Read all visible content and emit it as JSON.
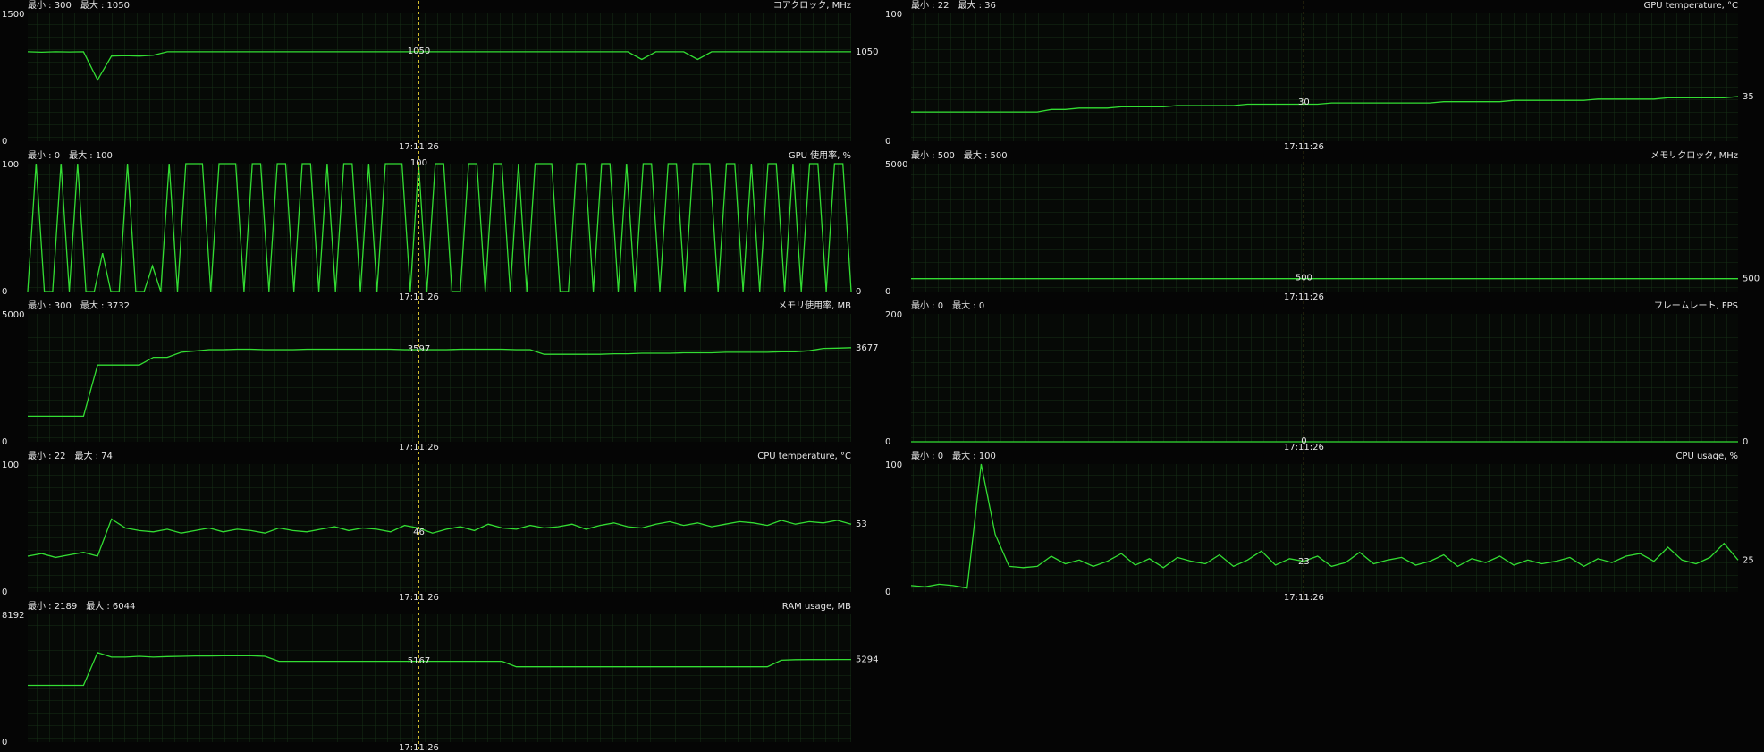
{
  "chart_data": [
    {
      "type": "line",
      "title": "コアクロック, MHz",
      "min_label": "最小 : 300",
      "max_label": "最大 : 1050",
      "ylim": [
        0,
        1500
      ],
      "yticks": [
        0,
        1500
      ],
      "color": "#33dd33",
      "current_value": 1050,
      "cursor_value": 1050,
      "cursor_time": "17:11:26",
      "values": [
        1050,
        1045,
        1050,
        1048,
        1050,
        720,
        1000,
        1005,
        1000,
        1010,
        1050,
        1050,
        1050,
        1050,
        1050,
        1050,
        1050,
        1050,
        1050,
        1050,
        1050,
        1050,
        1050,
        1050,
        1050,
        1050,
        1050,
        1050,
        1050,
        1050,
        1050,
        1050,
        1050,
        1050,
        1050,
        1050,
        1050,
        1050,
        1050,
        1050,
        1050,
        1050,
        1050,
        1050,
        960,
        1050,
        1050,
        1050,
        960,
        1050,
        1050,
        1050,
        1050,
        1050,
        1050,
        1050,
        1050,
        1050,
        1050,
        1050
      ]
    },
    {
      "type": "line",
      "title": "GPU 使用率, %",
      "min_label": "最小 : 0",
      "max_label": "最大 : 100",
      "ylim": [
        0,
        100
      ],
      "yticks": [
        0,
        100
      ],
      "color": "#33dd33",
      "current_value": 0,
      "cursor_value": 100,
      "cursor_time": "17:11:26",
      "values": [
        0,
        100,
        0,
        0,
        100,
        0,
        100,
        0,
        0,
        30,
        0,
        0,
        100,
        0,
        0,
        20,
        0,
        100,
        0,
        100,
        100,
        100,
        0,
        100,
        100,
        100,
        0,
        100,
        100,
        0,
        100,
        100,
        0,
        100,
        100,
        0,
        100,
        0,
        100,
        100,
        0,
        100,
        0,
        100,
        100,
        100,
        0,
        100,
        0,
        100,
        100,
        0,
        0,
        100,
        100,
        0,
        100,
        100,
        0,
        100,
        0,
        100,
        100,
        100,
        0,
        0,
        100,
        100,
        0,
        100,
        100,
        0,
        100,
        0,
        100,
        100,
        0,
        100,
        100,
        0,
        100,
        100,
        100,
        0,
        100,
        100,
        0,
        100,
        0,
        100,
        100,
        0,
        100,
        0,
        100,
        100,
        0,
        100,
        100,
        0
      ]
    },
    {
      "type": "line",
      "title": "メモリ使用率, MB",
      "min_label": "最小 : 300",
      "max_label": "最大 : 3732",
      "ylim": [
        0,
        5000
      ],
      "yticks": [
        0,
        5000
      ],
      "color": "#33dd33",
      "current_value": 3677,
      "cursor_value": 3597,
      "cursor_time": "17:11:26",
      "values": [
        1000,
        1000,
        1000,
        1000,
        1000,
        3000,
        3000,
        3000,
        3000,
        3300,
        3300,
        3500,
        3550,
        3600,
        3600,
        3620,
        3620,
        3600,
        3600,
        3600,
        3620,
        3620,
        3620,
        3620,
        3620,
        3620,
        3620,
        3600,
        3600,
        3600,
        3600,
        3620,
        3620,
        3620,
        3620,
        3600,
        3600,
        3420,
        3420,
        3420,
        3420,
        3420,
        3440,
        3440,
        3460,
        3460,
        3460,
        3480,
        3480,
        3480,
        3500,
        3500,
        3500,
        3500,
        3520,
        3520,
        3560,
        3650,
        3660,
        3677
      ]
    },
    {
      "type": "line",
      "title": "CPU temperature, °C",
      "min_label": "最小 : 22",
      "max_label": "最大 : 74",
      "ylim": [
        0,
        100
      ],
      "yticks": [
        0,
        100
      ],
      "color": "#33dd33",
      "current_value": 53,
      "cursor_value": 46,
      "cursor_time": "17:11:26",
      "values": [
        28,
        30,
        27,
        29,
        31,
        28,
        57,
        50,
        48,
        47,
        49,
        46,
        48,
        50,
        47,
        49,
        48,
        46,
        50,
        48,
        47,
        49,
        51,
        48,
        50,
        49,
        47,
        52,
        50,
        46,
        49,
        51,
        48,
        53,
        50,
        49,
        52,
        50,
        51,
        53,
        49,
        52,
        54,
        51,
        50,
        53,
        55,
        52,
        54,
        51,
        53,
        55,
        54,
        52,
        56,
        53,
        55,
        54,
        56,
        53
      ]
    },
    {
      "type": "line",
      "title": "RAM usage, MB",
      "min_label": "最小 : 2189",
      "max_label": "最大 : 6044",
      "ylim": [
        0,
        8192
      ],
      "yticks": [
        0,
        8192
      ],
      "color": "#33dd33",
      "current_value": 5294,
      "cursor_value": 5167,
      "cursor_time": "17:11:26",
      "values": [
        3640,
        3640,
        3640,
        3640,
        3640,
        5740,
        5450,
        5450,
        5500,
        5450,
        5480,
        5500,
        5520,
        5520,
        5540,
        5540,
        5540,
        5500,
        5180,
        5180,
        5180,
        5180,
        5180,
        5180,
        5180,
        5180,
        5180,
        5180,
        5180,
        5180,
        5180,
        5180,
        5180,
        5180,
        5180,
        4830,
        4830,
        4830,
        4830,
        4830,
        4830,
        4830,
        4830,
        4830,
        4830,
        4830,
        4830,
        4830,
        4830,
        4830,
        4830,
        4830,
        4830,
        4830,
        5250,
        5280,
        5290,
        5290,
        5294,
        5294
      ]
    },
    {
      "type": "line",
      "title": "GPU temperature, °C",
      "min_label": "最小 : 22",
      "max_label": "最大 : 36",
      "ylim": [
        0,
        100
      ],
      "yticks": [
        0,
        100
      ],
      "color": "#33dd33",
      "current_value": 35,
      "cursor_value": 30,
      "cursor_time": "17:11:26",
      "values": [
        23,
        23,
        23,
        23,
        23,
        23,
        23,
        23,
        23,
        23,
        25,
        25,
        26,
        26,
        26,
        27,
        27,
        27,
        27,
        28,
        28,
        28,
        28,
        28,
        29,
        29,
        29,
        29,
        29,
        29,
        30,
        30,
        30,
        30,
        30,
        30,
        30,
        30,
        31,
        31,
        31,
        31,
        31,
        32,
        32,
        32,
        32,
        32,
        32,
        33,
        33,
        33,
        33,
        33,
        34,
        34,
        34,
        34,
        34,
        35
      ]
    },
    {
      "type": "line",
      "title": "メモリクロック, MHz",
      "min_label": "最小 : 500",
      "max_label": "最大 : 500",
      "ylim": [
        0,
        5000
      ],
      "yticks": [
        0,
        5000
      ],
      "color": "#33dd33",
      "current_value": 500,
      "cursor_value": 500,
      "cursor_time": "17:11:26",
      "values": [
        500,
        500,
        500,
        500,
        500,
        500,
        500,
        500,
        500,
        500,
        500,
        500,
        500,
        500,
        500,
        500,
        500,
        500,
        500,
        500,
        500,
        500,
        500,
        500,
        500,
        500,
        500,
        500,
        500,
        500,
        500,
        500,
        500,
        500,
        500,
        500,
        500,
        500,
        500,
        500,
        500,
        500,
        500,
        500,
        500,
        500,
        500,
        500,
        500,
        500,
        500,
        500,
        500,
        500,
        500,
        500,
        500,
        500,
        500,
        500
      ]
    },
    {
      "type": "line",
      "title": "フレームレート, FPS",
      "min_label": "最小 : 0",
      "max_label": "最大 : 0",
      "ylim": [
        0,
        200
      ],
      "yticks": [
        0,
        200
      ],
      "color": "#33dd33",
      "current_value": 0,
      "cursor_value": 0,
      "cursor_time": "17:11:26",
      "values": [
        0,
        0,
        0,
        0,
        0,
        0,
        0,
        0,
        0,
        0,
        0,
        0,
        0,
        0,
        0,
        0,
        0,
        0,
        0,
        0,
        0,
        0,
        0,
        0,
        0,
        0,
        0,
        0,
        0,
        0,
        0,
        0,
        0,
        0,
        0,
        0,
        0,
        0,
        0,
        0,
        0,
        0,
        0,
        0,
        0,
        0,
        0,
        0,
        0,
        0,
        0,
        0,
        0,
        0,
        0,
        0,
        0,
        0,
        0,
        0
      ]
    },
    {
      "type": "line",
      "title": "CPU usage, %",
      "min_label": "最小 : 0",
      "max_label": "最大 : 100",
      "ylim": [
        0,
        100
      ],
      "yticks": [
        0,
        100
      ],
      "color": "#33dd33",
      "current_value": 25,
      "cursor_value": 23,
      "cursor_time": "17:11:26",
      "values": [
        5,
        4,
        6,
        5,
        3,
        100,
        45,
        20,
        19,
        20,
        28,
        22,
        25,
        20,
        24,
        30,
        21,
        26,
        19,
        27,
        24,
        22,
        29,
        20,
        25,
        32,
        21,
        26,
        24,
        28,
        20,
        23,
        31,
        22,
        25,
        27,
        21,
        24,
        29,
        20,
        26,
        23,
        28,
        21,
        25,
        22,
        24,
        27,
        20,
        26,
        23,
        28,
        30,
        24,
        35,
        25,
        22,
        27,
        38,
        25
      ]
    }
  ]
}
